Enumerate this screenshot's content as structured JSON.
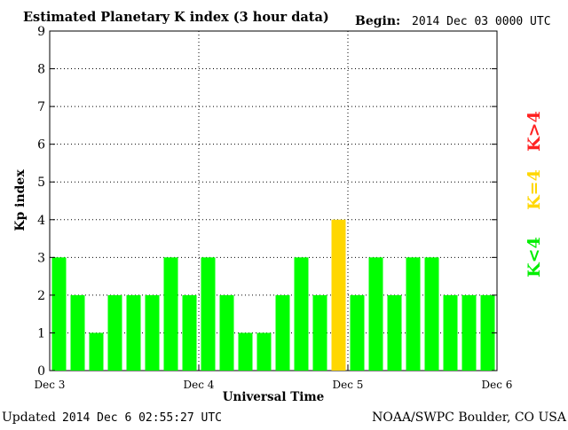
{
  "header": {
    "title": "Estimated Planetary K index (3 hour data)",
    "begin_label": "Begin:",
    "begin_value": "2014 Dec 03 0000 UTC"
  },
  "footer": {
    "updated_label": "Updated",
    "updated_value": "2014 Dec  6 02:55:27 UTC",
    "source": "NOAA/SWPC Boulder, CO USA"
  },
  "legend": {
    "low": "K<4",
    "mid": "K=4",
    "high": "K>4"
  },
  "colors": {
    "low": "#00ff00",
    "mid": "#ffd700",
    "high": "#ff2020",
    "grid": "#000000"
  },
  "chart_data": {
    "type": "bar",
    "title": "Estimated Planetary K index (3 hour data)",
    "xlabel": "Universal Time",
    "ylabel": "Kp index",
    "ylim": [
      0,
      9
    ],
    "yticks": [
      0,
      1,
      2,
      3,
      4,
      5,
      6,
      7,
      8,
      9
    ],
    "xticks": [
      "Dec 3",
      "Dec 4",
      "Dec 5",
      "Dec 6"
    ],
    "grid": true,
    "legend_position": "right",
    "values": [
      3,
      2,
      1,
      2,
      2,
      2,
      3,
      2,
      3,
      2,
      1,
      1,
      2,
      3,
      2,
      4,
      2,
      3,
      2,
      3,
      3,
      2,
      2,
      2
    ]
  }
}
